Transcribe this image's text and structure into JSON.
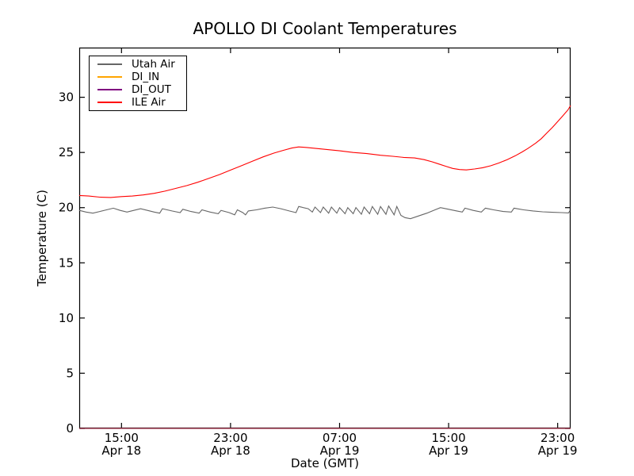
{
  "chart_data": {
    "type": "line",
    "title": "APOLLO DI Coolant Temperatures",
    "xlabel": "Date (GMT)",
    "ylabel": "Temperature (C)",
    "xlim": [
      11.9,
      47.95
    ],
    "ylim": [
      0,
      34.5
    ],
    "x_unit": "hours since Apr 18 00:00 GMT",
    "grid": false,
    "legend_position": "upper left",
    "x_ticks": [
      {
        "t": 15,
        "time": "15:00",
        "date": "Apr 18"
      },
      {
        "t": 23,
        "time": "23:00",
        "date": "Apr 18"
      },
      {
        "t": 31,
        "time": "07:00",
        "date": "Apr 19"
      },
      {
        "t": 39,
        "time": "15:00",
        "date": "Apr 19"
      },
      {
        "t": 47,
        "time": "23:00",
        "date": "Apr 19"
      }
    ],
    "y_ticks": [
      0,
      5,
      10,
      15,
      20,
      25,
      30
    ],
    "series": [
      {
        "name": "Utah Air",
        "color": "#666666",
        "points": [
          [
            11.9,
            19.75
          ],
          [
            12.4,
            19.6
          ],
          [
            12.9,
            19.5
          ],
          [
            13.4,
            19.65
          ],
          [
            13.9,
            19.8
          ],
          [
            14.4,
            19.95
          ],
          [
            14.9,
            19.75
          ],
          [
            15.4,
            19.6
          ],
          [
            15.9,
            19.75
          ],
          [
            16.4,
            19.9
          ],
          [
            16.9,
            19.75
          ],
          [
            17.4,
            19.6
          ],
          [
            17.8,
            19.5
          ],
          [
            18.0,
            19.9
          ],
          [
            18.7,
            19.7
          ],
          [
            19.3,
            19.55
          ],
          [
            19.5,
            19.85
          ],
          [
            20.1,
            19.65
          ],
          [
            20.7,
            19.5
          ],
          [
            20.9,
            19.8
          ],
          [
            21.5,
            19.6
          ],
          [
            22.1,
            19.45
          ],
          [
            22.3,
            19.75
          ],
          [
            22.9,
            19.55
          ],
          [
            23.3,
            19.35
          ],
          [
            23.5,
            19.8
          ],
          [
            23.9,
            19.55
          ],
          [
            24.1,
            19.35
          ],
          [
            24.3,
            19.7
          ],
          [
            24.9,
            19.8
          ],
          [
            25.5,
            19.95
          ],
          [
            26.1,
            20.05
          ],
          [
            26.7,
            19.9
          ],
          [
            27.3,
            19.7
          ],
          [
            27.8,
            19.55
          ],
          [
            28.0,
            20.1
          ],
          [
            28.7,
            19.9
          ],
          [
            29.0,
            19.6
          ],
          [
            29.2,
            20.05
          ],
          [
            29.6,
            19.55
          ],
          [
            29.8,
            20.05
          ],
          [
            30.2,
            19.5
          ],
          [
            30.4,
            20.05
          ],
          [
            30.8,
            19.5
          ],
          [
            31.0,
            20.0
          ],
          [
            31.4,
            19.45
          ],
          [
            31.6,
            20.0
          ],
          [
            32.0,
            19.45
          ],
          [
            32.2,
            20.0
          ],
          [
            32.6,
            19.4
          ],
          [
            32.8,
            20.05
          ],
          [
            33.2,
            19.45
          ],
          [
            33.4,
            20.1
          ],
          [
            33.8,
            19.4
          ],
          [
            34.0,
            20.1
          ],
          [
            34.4,
            19.4
          ],
          [
            34.6,
            20.15
          ],
          [
            35.0,
            19.35
          ],
          [
            35.2,
            20.1
          ],
          [
            35.5,
            19.3
          ],
          [
            35.8,
            19.1
          ],
          [
            36.2,
            19.0
          ],
          [
            36.8,
            19.25
          ],
          [
            37.4,
            19.5
          ],
          [
            38.0,
            19.8
          ],
          [
            38.4,
            20.0
          ],
          [
            39.0,
            19.85
          ],
          [
            39.6,
            19.7
          ],
          [
            40.0,
            19.6
          ],
          [
            40.2,
            19.95
          ],
          [
            40.8,
            19.75
          ],
          [
            41.4,
            19.6
          ],
          [
            41.7,
            19.95
          ],
          [
            42.3,
            19.8
          ],
          [
            43.0,
            19.65
          ],
          [
            43.6,
            19.6
          ],
          [
            43.8,
            19.95
          ],
          [
            44.5,
            19.8
          ],
          [
            45.2,
            19.7
          ],
          [
            45.9,
            19.62
          ],
          [
            46.6,
            19.58
          ],
          [
            47.3,
            19.55
          ],
          [
            47.8,
            19.52
          ],
          [
            47.9,
            19.72
          ]
        ]
      },
      {
        "name": "DI_IN",
        "color": "#ffa500",
        "points": [
          [
            11.9,
            0
          ],
          [
            47.95,
            0
          ]
        ]
      },
      {
        "name": "DI_OUT",
        "color": "#800080",
        "points": [
          [
            11.9,
            0
          ],
          [
            47.95,
            0
          ]
        ]
      },
      {
        "name": "ILE Air",
        "color": "#ff0000",
        "points": [
          [
            11.9,
            21.1
          ],
          [
            12.6,
            21.05
          ],
          [
            13.4,
            20.95
          ],
          [
            14.2,
            20.92
          ],
          [
            15.0,
            21.0
          ],
          [
            15.8,
            21.05
          ],
          [
            16.6,
            21.15
          ],
          [
            17.4,
            21.3
          ],
          [
            18.2,
            21.5
          ],
          [
            19.0,
            21.75
          ],
          [
            19.8,
            22.0
          ],
          [
            20.6,
            22.3
          ],
          [
            21.4,
            22.65
          ],
          [
            22.2,
            23.0
          ],
          [
            23.0,
            23.4
          ],
          [
            23.8,
            23.8
          ],
          [
            24.6,
            24.2
          ],
          [
            25.4,
            24.6
          ],
          [
            26.2,
            24.95
          ],
          [
            26.9,
            25.2
          ],
          [
            27.5,
            25.4
          ],
          [
            28.0,
            25.5
          ],
          [
            28.6,
            25.45
          ],
          [
            29.4,
            25.35
          ],
          [
            30.2,
            25.25
          ],
          [
            31.0,
            25.15
          ],
          [
            32.0,
            25.0
          ],
          [
            33.0,
            24.9
          ],
          [
            34.0,
            24.75
          ],
          [
            34.9,
            24.65
          ],
          [
            35.7,
            24.55
          ],
          [
            36.5,
            24.5
          ],
          [
            37.2,
            24.35
          ],
          [
            37.8,
            24.15
          ],
          [
            38.3,
            23.95
          ],
          [
            38.8,
            23.75
          ],
          [
            39.3,
            23.55
          ],
          [
            39.8,
            23.45
          ],
          [
            40.3,
            23.42
          ],
          [
            40.9,
            23.5
          ],
          [
            41.5,
            23.62
          ],
          [
            42.1,
            23.8
          ],
          [
            42.7,
            24.05
          ],
          [
            43.3,
            24.35
          ],
          [
            43.9,
            24.7
          ],
          [
            44.4,
            25.05
          ],
          [
            44.8,
            25.35
          ],
          [
            45.1,
            25.6
          ],
          [
            45.4,
            25.85
          ],
          [
            45.8,
            26.25
          ],
          [
            46.2,
            26.75
          ],
          [
            46.6,
            27.25
          ],
          [
            47.0,
            27.8
          ],
          [
            47.4,
            28.35
          ],
          [
            47.75,
            28.85
          ],
          [
            47.95,
            29.25
          ]
        ]
      }
    ]
  }
}
